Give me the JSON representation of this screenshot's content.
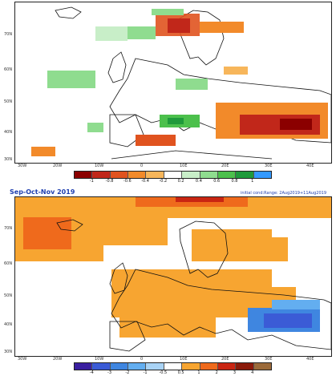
{
  "panel1": {
    "lat_labels": [
      "70N",
      "60N",
      "50N",
      "40N",
      "30N"
    ],
    "lon_labels": [
      "30W",
      "20W",
      "10W",
      "0",
      "10E",
      "20E",
      "30E",
      "40E"
    ],
    "colorbar": {
      "ticks": [
        "-1",
        "-0.8",
        "-0.6",
        "-0.4",
        "-0.2",
        "0.2",
        "0.4",
        "0.6",
        "0.8",
        "1"
      ],
      "colors": [
        "#8b0000",
        "#c1271a",
        "#e0531f",
        "#f28a2a",
        "#f7b65b",
        "#ffffff",
        "#c8eec8",
        "#8fdc8f",
        "#4cc04c",
        "#1f9a3b",
        "#3399ff"
      ]
    }
  },
  "panel2": {
    "title": "Sep-Oct-Nov 2019",
    "subtitle": "initial cond:Range: 2Aug2019+11Aug2019",
    "lat_labels": [
      "70N",
      "60N",
      "50N",
      "40N",
      "30N"
    ],
    "lon_labels": [
      "30W",
      "20W",
      "10W",
      "0",
      "10E",
      "20E",
      "30E",
      "40E"
    ],
    "colorbar": {
      "ticks": [
        "-4",
        "-3",
        "-2",
        "-1",
        "-0.5",
        "0.5",
        "1",
        "2",
        "3",
        "4"
      ],
      "colors": [
        "#3a1fa0",
        "#3b5bd6",
        "#3f86e0",
        "#63aef0",
        "#a9d3f5",
        "#ffffff",
        "#f7a531",
        "#ef6a1c",
        "#c92512",
        "#8b1a0a",
        "#9b6a3a"
      ]
    }
  }
}
